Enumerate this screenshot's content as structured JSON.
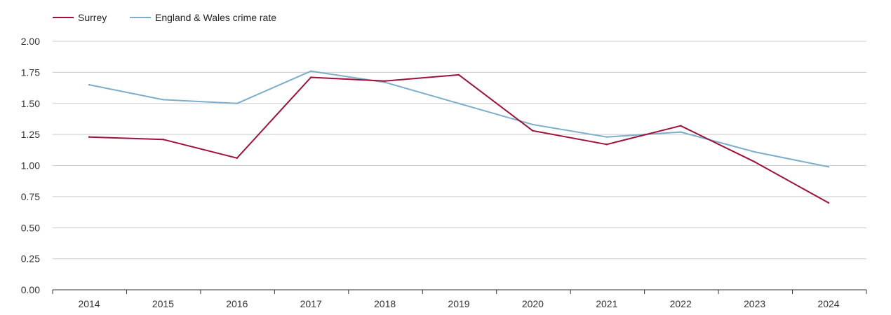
{
  "chart_data": {
    "type": "line",
    "title": "",
    "xlabel": "",
    "ylabel": "",
    "x": [
      "2014",
      "2015",
      "2016",
      "2017",
      "2018",
      "2019",
      "2020",
      "2021",
      "2022",
      "2023",
      "2024"
    ],
    "ylim": [
      0,
      2.0
    ],
    "yticks": [
      "0.00",
      "0.25",
      "0.50",
      "0.75",
      "1.00",
      "1.25",
      "1.50",
      "1.75",
      "2.00"
    ],
    "grid": true,
    "legend_position": "top-left",
    "series": [
      {
        "name": "Surrey",
        "color": "#a0103a",
        "values": [
          1.23,
          1.21,
          1.06,
          1.71,
          1.68,
          1.73,
          1.28,
          1.17,
          1.32,
          1.03,
          0.7
        ]
      },
      {
        "name": "England & Wales crime rate",
        "color": "#7aaecb",
        "values": [
          1.65,
          1.53,
          1.5,
          1.76,
          1.67,
          1.5,
          1.33,
          1.23,
          1.27,
          1.11,
          0.99
        ]
      }
    ]
  }
}
